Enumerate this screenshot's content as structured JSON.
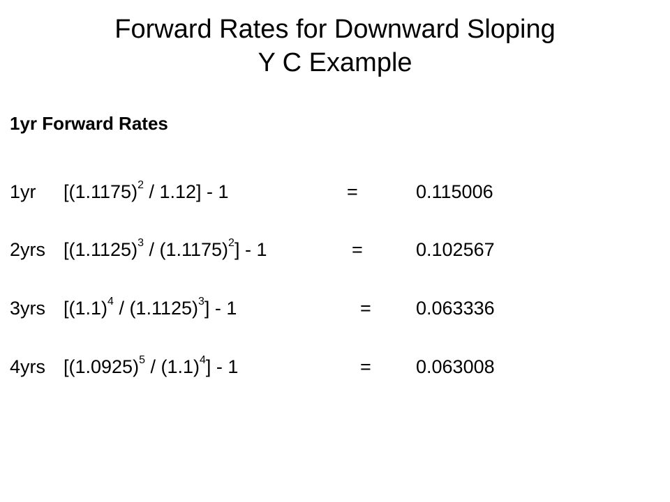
{
  "title": {
    "line1": "Forward Rates for Downward Sloping",
    "line2": "Y C Example"
  },
  "subheading": "1yr Forward Rates",
  "rows": [
    {
      "label": "1yr",
      "base1": "[(1.1175)",
      "exp1": "2",
      "mid": " / 1.12] - 1",
      "base2": "",
      "exp2": "",
      "tail": "",
      "equals": "=",
      "value": "0.115006"
    },
    {
      "label": "2yrs",
      "base1": "[(1.1125)",
      "exp1": "3",
      "mid": " / (1.1175)",
      "base2": "",
      "exp2": "2",
      "tail": "] - 1",
      "equals": "=",
      "value": "0.102567"
    },
    {
      "label": "3yrs",
      "base1": "[(1.1)",
      "exp1": "4",
      "mid": " / (1.1125)",
      "base2": "",
      "exp2": "3",
      "tail": "] - 1",
      "equals": "=",
      "value": "0.063336"
    },
    {
      "label": "4yrs",
      "base1": "[(1.0925)",
      "exp1": "5",
      "mid": " / (1.1)",
      "base2": "",
      "exp2": "4",
      "tail": "] - 1",
      "equals": "=",
      "value": "0.063008"
    }
  ]
}
